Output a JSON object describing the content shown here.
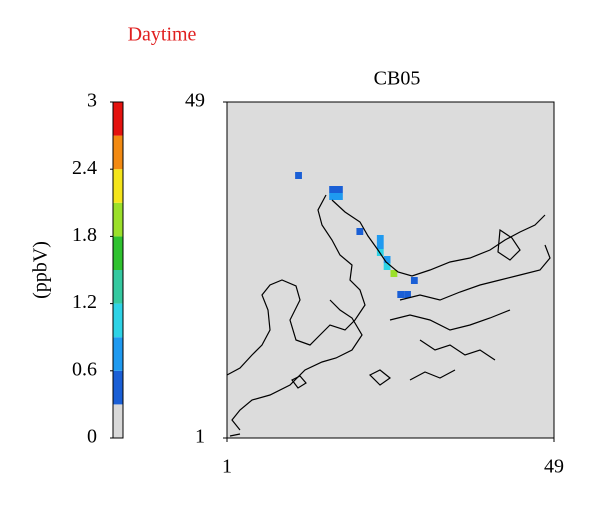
{
  "chart_data": {
    "type": "heatmap",
    "title": "CB05",
    "annotation": "Daytime",
    "annotation_color": "#e02020",
    "colorbar_label": "(ppbV)",
    "colorbar_ticks": [
      0,
      0.6,
      1.2,
      1.8,
      2.4,
      3
    ],
    "colorbar_levels": [
      0,
      0.3,
      0.6,
      0.9,
      1.2,
      1.5,
      1.8,
      2.1,
      2.4,
      2.7,
      3
    ],
    "colorbar_colors": [
      "#d9d9d9",
      "#1a5fd6",
      "#1f9af0",
      "#2ed3e6",
      "#35c9a0",
      "#2fc22f",
      "#9be02a",
      "#f5e51b",
      "#f28a12",
      "#e4120f"
    ],
    "background": "#dcdcdc",
    "xlim": [
      1,
      49
    ],
    "ylim": [
      1,
      49
    ],
    "xticks": [
      1,
      49
    ],
    "yticks": [
      1,
      49
    ],
    "cells": {
      "x": [
        11,
        16,
        16,
        17,
        17,
        20,
        23,
        23,
        23,
        24,
        24,
        25,
        28,
        26,
        27
      ],
      "y": [
        38,
        36,
        35,
        36,
        35,
        30,
        29,
        28,
        27,
        26,
        25,
        24,
        23,
        21,
        21
      ],
      "values": [
        0.5,
        0.5,
        0.7,
        0.5,
        0.8,
        0.5,
        0.7,
        0.8,
        1.0,
        0.7,
        1.0,
        1.9,
        0.5,
        0.5,
        0.5
      ]
    }
  }
}
